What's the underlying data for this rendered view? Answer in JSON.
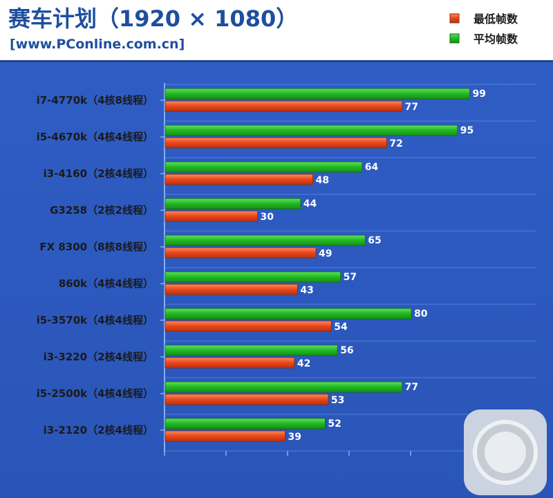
{
  "header": {
    "title": "赛车计划（1920 × 1080）",
    "subtitle": "[www.PConline.com.cn]"
  },
  "colors": {
    "min_bar": "#e8461c",
    "avg_bar": "#29c429",
    "plot_bg": "#3563c7",
    "grid_line": "#6a9cf0",
    "axis": "#87aef5"
  },
  "chart_data": {
    "type": "bar",
    "orientation": "horizontal",
    "title": "赛车计划（1920 × 1080）",
    "categories": [
      "i7-4770k（4核8线程）",
      "i5-4670k（4核4线程）",
      "i3-4160（2核4线程）",
      "G3258（2核2线程）",
      "FX 8300（8核8线程）",
      "860k（4核4线程）",
      "i5-3570k（4核4线程）",
      "i3-3220（2核4线程）",
      "i5-2500k（4核4线程）",
      "i3-2120（2核4线程）"
    ],
    "series": [
      {
        "name": "最低帧数",
        "values": [
          77,
          72,
          48,
          30,
          49,
          43,
          54,
          42,
          53,
          39
        ]
      },
      {
        "name": "平均帧数",
        "values": [
          99,
          95,
          64,
          44,
          65,
          57,
          80,
          56,
          77,
          52
        ]
      }
    ],
    "xlim": [
      0,
      120
    ],
    "grid": true,
    "legend_position": "top-right"
  }
}
